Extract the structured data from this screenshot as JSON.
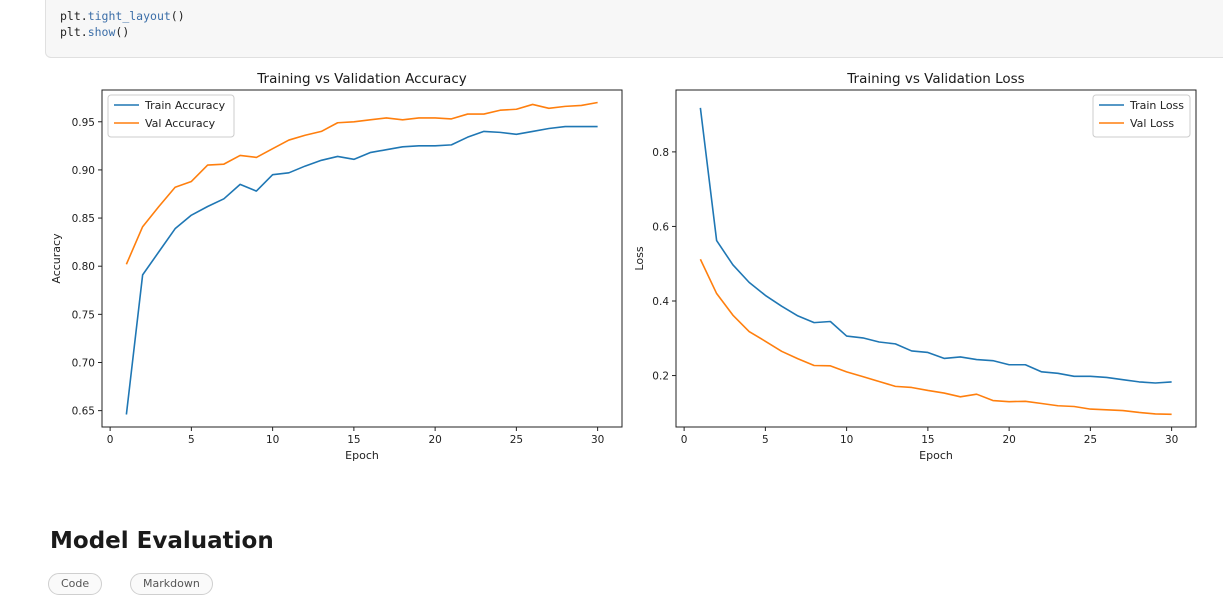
{
  "code": {
    "lines": [
      {
        "obj": "plt.",
        "fn": "tight_layout",
        "args": "()"
      },
      {
        "obj": "plt.",
        "fn": "show",
        "args": "()"
      }
    ]
  },
  "section": {
    "title": "Model Evaluation"
  },
  "chips": [
    {
      "label": "Code"
    },
    {
      "label": "Markdown"
    }
  ],
  "colors": {
    "train": "#1f77b4",
    "val": "#ff7f0e"
  },
  "chart_data": [
    {
      "type": "line",
      "title": "Training vs Validation Accuracy",
      "xlabel": "Epoch",
      "ylabel": "Accuracy",
      "xlim": [
        -0.5,
        31.5
      ],
      "ylim": [
        0.633,
        0.983
      ],
      "xticks": [
        0,
        5,
        10,
        15,
        20,
        25,
        30
      ],
      "yticks": [
        0.65,
        0.7,
        0.75,
        0.8,
        0.85,
        0.9,
        0.95
      ],
      "ytick_labels": [
        "0.65",
        "0.70",
        "0.75",
        "0.80",
        "0.85",
        "0.90",
        "0.95"
      ],
      "legend": "upper-left",
      "grid": false,
      "x": [
        1,
        2,
        3,
        4,
        5,
        6,
        7,
        8,
        9,
        10,
        11,
        12,
        13,
        14,
        15,
        16,
        17,
        18,
        19,
        20,
        21,
        22,
        23,
        24,
        25,
        26,
        27,
        28,
        29,
        30
      ],
      "series": [
        {
          "name": "Train Accuracy",
          "color": "#1f77b4",
          "values": [
            0.646,
            0.791,
            0.815,
            0.839,
            0.853,
            0.862,
            0.87,
            0.885,
            0.878,
            0.895,
            0.897,
            0.904,
            0.91,
            0.914,
            0.911,
            0.918,
            0.921,
            0.924,
            0.925,
            0.925,
            0.926,
            0.934,
            0.94,
            0.939,
            0.937,
            0.94,
            0.943,
            0.945,
            0.945,
            0.945
          ]
        },
        {
          "name": "Val Accuracy",
          "color": "#ff7f0e",
          "values": [
            0.802,
            0.841,
            0.862,
            0.882,
            0.888,
            0.905,
            0.906,
            0.915,
            0.913,
            0.922,
            0.931,
            0.936,
            0.94,
            0.949,
            0.95,
            0.952,
            0.954,
            0.952,
            0.954,
            0.954,
            0.953,
            0.958,
            0.958,
            0.962,
            0.963,
            0.968,
            0.964,
            0.966,
            0.967,
            0.97
          ]
        }
      ]
    },
    {
      "type": "line",
      "title": "Training vs Validation Loss",
      "xlabel": "Epoch",
      "ylabel": "Loss",
      "xlim": [
        -0.5,
        31.5
      ],
      "ylim": [
        0.062,
        0.966
      ],
      "xticks": [
        0,
        5,
        10,
        15,
        20,
        25,
        30
      ],
      "yticks": [
        0.2,
        0.4,
        0.6,
        0.8
      ],
      "ytick_labels": [
        "0.2",
        "0.4",
        "0.6",
        "0.8"
      ],
      "legend": "upper-right",
      "grid": false,
      "x": [
        1,
        2,
        3,
        4,
        5,
        6,
        7,
        8,
        9,
        10,
        11,
        12,
        13,
        14,
        15,
        16,
        17,
        18,
        19,
        20,
        21,
        22,
        23,
        24,
        25,
        26,
        27,
        28,
        29,
        30
      ],
      "series": [
        {
          "name": "Train Loss",
          "color": "#1f77b4",
          "values": [
            0.918,
            0.562,
            0.497,
            0.45,
            0.415,
            0.386,
            0.36,
            0.342,
            0.345,
            0.306,
            0.301,
            0.29,
            0.285,
            0.266,
            0.262,
            0.246,
            0.25,
            0.243,
            0.24,
            0.229,
            0.229,
            0.21,
            0.206,
            0.198,
            0.198,
            0.195,
            0.189,
            0.183,
            0.18,
            0.183
          ]
        },
        {
          "name": "Val Loss",
          "color": "#ff7f0e",
          "values": [
            0.512,
            0.42,
            0.362,
            0.318,
            0.292,
            0.265,
            0.245,
            0.227,
            0.226,
            0.21,
            0.197,
            0.184,
            0.171,
            0.168,
            0.16,
            0.153,
            0.143,
            0.15,
            0.133,
            0.13,
            0.131,
            0.125,
            0.119,
            0.117,
            0.11,
            0.108,
            0.106,
            0.101,
            0.097,
            0.096
          ]
        }
      ]
    }
  ]
}
